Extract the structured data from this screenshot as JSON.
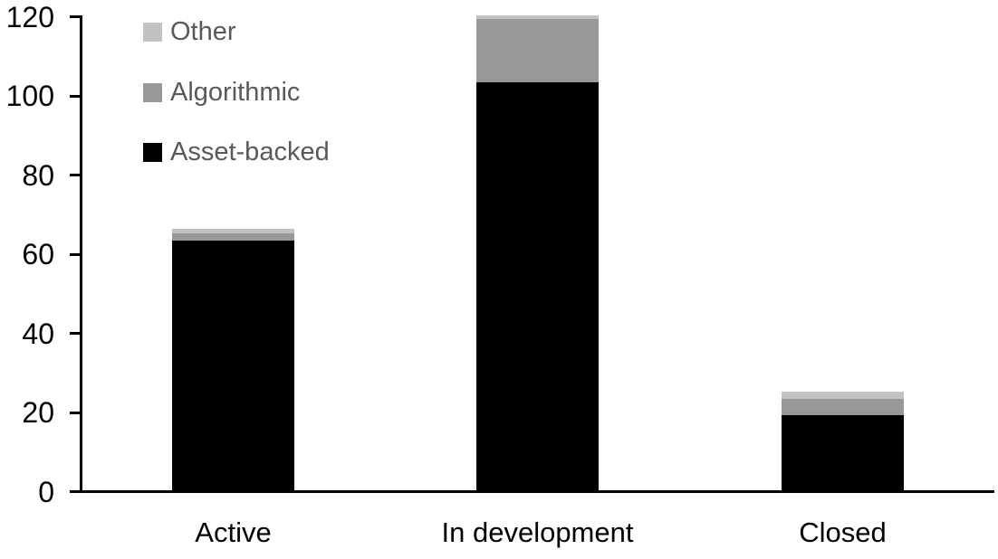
{
  "chart_data": {
    "type": "bar",
    "stacked": true,
    "title": "",
    "xlabel": "",
    "ylabel": "",
    "categories": [
      "Active",
      "In development",
      "Closed"
    ],
    "series": [
      {
        "name": "Asset-backed",
        "color": "#000000",
        "values": [
          63,
          103,
          19
        ]
      },
      {
        "name": "Algorithmic",
        "color": "#989898",
        "values": [
          2,
          16,
          4
        ]
      },
      {
        "name": "Other",
        "color": "#c2c2c2",
        "values": [
          1,
          1,
          2
        ]
      }
    ],
    "stack_order_bottom_to_top": [
      "Asset-backed",
      "Algorithmic",
      "Other"
    ],
    "totals": [
      66,
      120,
      25
    ],
    "y_axis": {
      "min": 0,
      "max": 120,
      "tick_step": 20,
      "tick_labels": [
        "0",
        "20",
        "40",
        "60",
        "80",
        "100",
        "120"
      ]
    },
    "x_axis": {
      "tick_marks": false
    },
    "legend": {
      "position": "top-left",
      "entries": [
        "Other",
        "Algorithmic",
        "Asset-backed"
      ],
      "text_color": "#595959"
    },
    "grid": false,
    "axis_color": "#000000",
    "background_color": "#ffffff"
  }
}
